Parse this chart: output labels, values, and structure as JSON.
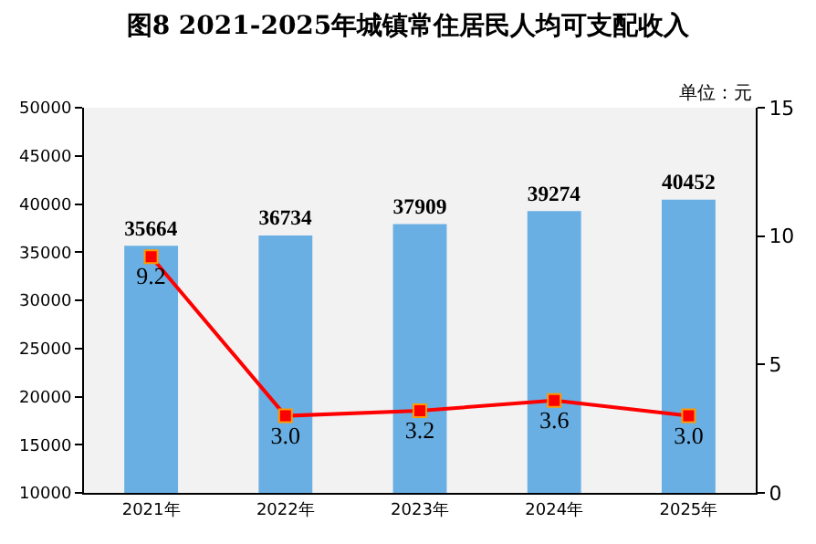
{
  "chart_data": {
    "type": "bar",
    "title": "图8 2021-2025年城镇常住居民人均可支配收入",
    "annotations": [
      "单位：元"
    ],
    "categories": [
      "2021年",
      "2022年",
      "2023年",
      "2024年",
      "2025年"
    ],
    "series": [
      {
        "color": "#6aafe3",
        "values": [
          35664,
          36734,
          37909,
          39274,
          40452
        ]
      },
      {
        "type": "line",
        "axis": "y2",
        "color": "#ff0000",
        "marker": "square",
        "line_style": "solid",
        "values": [
          9.2,
          3.0,
          3.2,
          3.6,
          3.0
        ],
        "value_labels": [
          "9.2",
          "3.0",
          "3.2",
          "3.6",
          "3.0"
        ]
      }
    ],
    "data_labels": true,
    "ylim": [
      10000,
      50000
    ],
    "yticks": [
      10000,
      15000,
      20000,
      25000,
      30000,
      35000,
      40000,
      45000,
      50000
    ],
    "y2lim": [
      0,
      15
    ],
    "y2ticks": [
      0,
      5,
      10,
      15
    ],
    "grid": false,
    "legend": false
  }
}
